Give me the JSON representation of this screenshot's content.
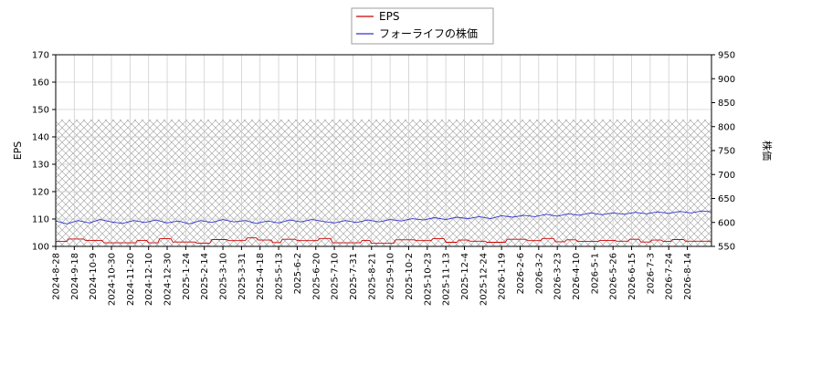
{
  "chart_data": {
    "type": "line",
    "title": "",
    "hatched_band": true,
    "grid": true,
    "legend_position": "top-center",
    "x_tick_labels": [
      "2024-8-28",
      "2024-9-18",
      "2024-10-9",
      "2024-10-30",
      "2024-11-20",
      "2024-12-10",
      "2024-12-30",
      "2025-1-24",
      "2025-2-14",
      "2025-3-10",
      "2025-3-31",
      "2025-4-18",
      "2025-5-13",
      "2025-6-2",
      "2025-6-20",
      "2025-7-10",
      "2025-7-31",
      "2025-8-21",
      "2025-9-10",
      "2025-10-2",
      "2025-10-23",
      "2025-11-13",
      "2025-12-4",
      "2025-12-24",
      "2026-1-19",
      "2026-2-6",
      "2026-3-2",
      "2026-3-23",
      "2026-4-10",
      "2026-5-1",
      "2026-5-26",
      "2026-6-15",
      "2026-7-3",
      "2026-7-24",
      "2026-8-14"
    ],
    "x_range": [
      0,
      35.3
    ],
    "left_axis": {
      "label": "EPS",
      "min": 100,
      "max": 170,
      "ticks": [
        100,
        110,
        120,
        130,
        140,
        150,
        160,
        170
      ]
    },
    "right_axis": {
      "label": "株価",
      "min": 550,
      "max": 950,
      "ticks": [
        550,
        600,
        650,
        700,
        750,
        800,
        850,
        900,
        950
      ]
    },
    "series": [
      {
        "name": "EPS",
        "axis": "left",
        "color": "#cc0000",
        "points": [
          [
            0,
            101.8
          ],
          [
            0.6,
            101.8
          ],
          [
            0.7,
            102.7
          ],
          [
            1.5,
            102.7
          ],
          [
            1.6,
            102.2
          ],
          [
            2.5,
            102.2
          ],
          [
            2.6,
            101.3
          ],
          [
            4.3,
            101.3
          ],
          [
            4.4,
            102.2
          ],
          [
            4.9,
            102.2
          ],
          [
            5,
            101.3
          ],
          [
            5.5,
            101.3
          ],
          [
            5.6,
            102.8
          ],
          [
            6.2,
            102.8
          ],
          [
            6.3,
            101.6
          ],
          [
            7.5,
            101.6
          ],
          [
            7.6,
            101.2
          ],
          [
            8.3,
            101.2
          ],
          [
            8.4,
            102.5
          ],
          [
            9.2,
            102.5
          ],
          [
            9.3,
            102.1
          ],
          [
            10.2,
            102.1
          ],
          [
            10.3,
            103.1
          ],
          [
            10.8,
            103.1
          ],
          [
            10.9,
            102.3
          ],
          [
            11.6,
            102.3
          ],
          [
            11.7,
            101.4
          ],
          [
            12.1,
            101.4
          ],
          [
            12.2,
            102.6
          ],
          [
            12.9,
            102.6
          ],
          [
            13,
            102.1
          ],
          [
            14.1,
            102.1
          ],
          [
            14.2,
            102.9
          ],
          [
            14.8,
            102.9
          ],
          [
            14.9,
            101.3
          ],
          [
            16.4,
            101.3
          ],
          [
            16.5,
            102.2
          ],
          [
            16.9,
            102.2
          ],
          [
            17,
            101.1
          ],
          [
            18.2,
            101.1
          ],
          [
            18.3,
            102.4
          ],
          [
            19.3,
            102.4
          ],
          [
            19.4,
            102.1
          ],
          [
            20.2,
            102.1
          ],
          [
            20.3,
            102.8
          ],
          [
            20.9,
            102.8
          ],
          [
            21,
            101.5
          ],
          [
            21.6,
            101.5
          ],
          [
            21.7,
            102.3
          ],
          [
            22.2,
            102.3
          ],
          [
            22.3,
            101.9
          ],
          [
            23.1,
            101.9
          ],
          [
            23.2,
            101.5
          ],
          [
            24.2,
            101.5
          ],
          [
            24.3,
            102.6
          ],
          [
            25.3,
            102.6
          ],
          [
            25.4,
            102.1
          ],
          [
            26.1,
            102.1
          ],
          [
            26.2,
            102.9
          ],
          [
            26.8,
            102.9
          ],
          [
            26.9,
            101.7
          ],
          [
            27.4,
            101.7
          ],
          [
            27.5,
            102.4
          ],
          [
            28,
            102.4
          ],
          [
            28.1,
            101.8
          ],
          [
            29.2,
            101.8
          ],
          [
            29.3,
            102.2
          ],
          [
            30.1,
            102.2
          ],
          [
            30.2,
            101.9
          ],
          [
            30.8,
            101.9
          ],
          [
            30.9,
            102.6
          ],
          [
            31.4,
            102.6
          ],
          [
            31.5,
            101.6
          ],
          [
            32,
            101.6
          ],
          [
            32.1,
            102.3
          ],
          [
            32.6,
            102.3
          ],
          [
            32.7,
            101.8
          ],
          [
            33.1,
            101.8
          ],
          [
            33.2,
            102.5
          ],
          [
            33.8,
            102.5
          ],
          [
            33.9,
            101.9
          ],
          [
            35.3,
            101.9
          ]
        ]
      },
      {
        "name": "フォーライフの株価",
        "axis": "right",
        "color": "#3333cc",
        "points": [
          [
            0,
            603
          ],
          [
            0.6,
            597
          ],
          [
            1.2,
            604
          ],
          [
            1.8,
            599
          ],
          [
            2.4,
            606
          ],
          [
            3,
            601
          ],
          [
            3.6,
            598
          ],
          [
            4.2,
            604
          ],
          [
            4.8,
            600
          ],
          [
            5.4,
            605
          ],
          [
            6,
            599
          ],
          [
            6.6,
            603
          ],
          [
            7.2,
            597
          ],
          [
            7.8,
            604
          ],
          [
            8.4,
            600
          ],
          [
            9,
            606
          ],
          [
            9.6,
            601
          ],
          [
            10.2,
            604
          ],
          [
            10.8,
            598
          ],
          [
            11.4,
            603
          ],
          [
            12,
            599
          ],
          [
            12.6,
            605
          ],
          [
            13.2,
            601
          ],
          [
            13.8,
            606
          ],
          [
            14.4,
            602
          ],
          [
            15,
            599
          ],
          [
            15.6,
            604
          ],
          [
            16.2,
            600
          ],
          [
            16.8,
            605
          ],
          [
            17.4,
            601
          ],
          [
            18,
            606
          ],
          [
            18.6,
            603
          ],
          [
            19.2,
            608
          ],
          [
            19.8,
            605
          ],
          [
            20.4,
            610
          ],
          [
            21,
            606
          ],
          [
            21.6,
            611
          ],
          [
            22.2,
            608
          ],
          [
            22.8,
            612
          ],
          [
            23.4,
            608
          ],
          [
            24,
            614
          ],
          [
            24.6,
            611
          ],
          [
            25.2,
            615
          ],
          [
            25.8,
            612
          ],
          [
            26.4,
            617
          ],
          [
            27,
            613
          ],
          [
            27.6,
            618
          ],
          [
            28.2,
            615
          ],
          [
            28.8,
            620
          ],
          [
            29.4,
            616
          ],
          [
            30,
            620
          ],
          [
            30.6,
            617
          ],
          [
            31.2,
            621
          ],
          [
            31.8,
            618
          ],
          [
            32.4,
            622
          ],
          [
            33,
            619
          ],
          [
            33.6,
            623
          ],
          [
            34.2,
            620
          ],
          [
            34.8,
            624
          ],
          [
            35.3,
            622
          ]
        ]
      }
    ]
  },
  "legend": {
    "eps_label": "EPS",
    "price_label": "フォーライフの株価"
  }
}
